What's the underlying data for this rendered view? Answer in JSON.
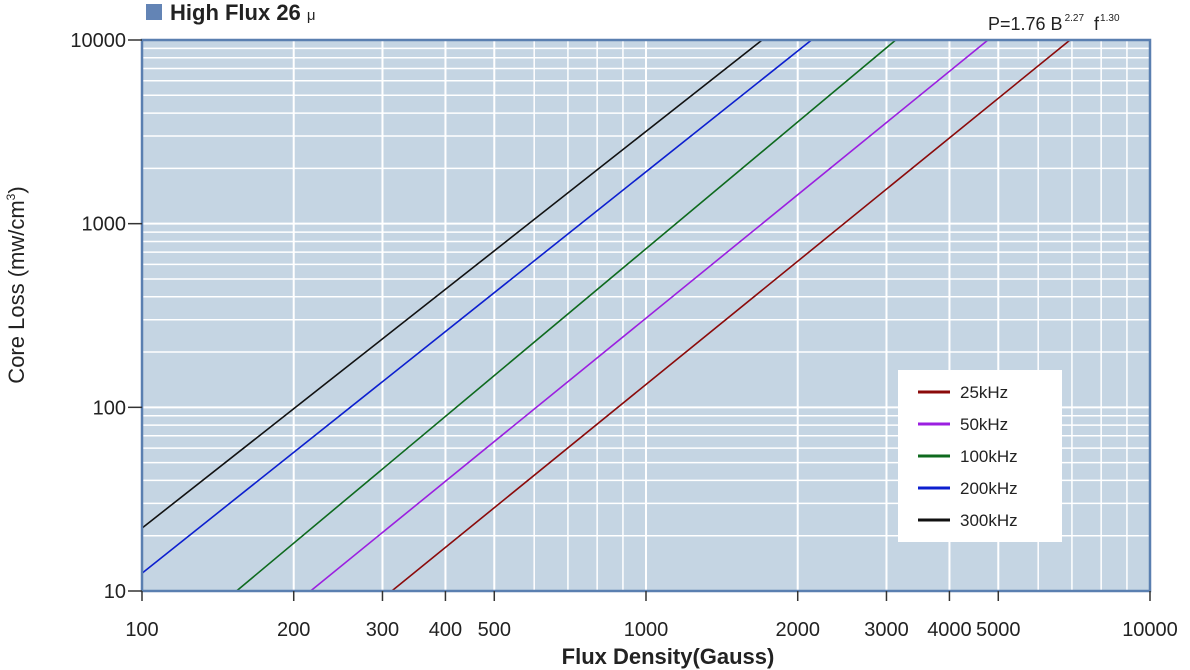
{
  "chart_data": {
    "type": "line",
    "title": "High Flux 26",
    "title_unit": "μ",
    "annotation": {
      "base": "P=1.76  B",
      "b_exp": "2.27",
      "f": "f",
      "f_exp": "1.30"
    },
    "x_label": "Flux Density(Gauss)",
    "y_label": {
      "text": "Core Loss (mw/cm",
      "sup": "3",
      "end": ")"
    },
    "xscale": "log",
    "yscale": "log",
    "xlim": [
      100,
      10000
    ],
    "ylim": [
      10,
      10000
    ],
    "xticks": [
      100,
      200,
      300,
      400,
      500,
      1000,
      2000,
      3000,
      4000,
      5000,
      10000
    ],
    "yticks": [
      10,
      100,
      1000,
      10000
    ],
    "grid": true,
    "minor_grid": true,
    "legend": "lower right",
    "series": [
      {
        "name": "25kHz",
        "color": "#8b0a0a",
        "x": [
          313,
          6940
        ],
        "values": [
          10,
          10000
        ]
      },
      {
        "name": "50kHz",
        "color": "#9b1fe0",
        "x": [
          216,
          4770
        ],
        "values": [
          10,
          10000
        ]
      },
      {
        "name": "100kHz",
        "color": "#0e6a1e",
        "x": [
          154,
          3130
        ],
        "values": [
          10,
          10000
        ]
      },
      {
        "name": "200kHz",
        "color": "#0c1fcf",
        "x": [
          100,
          2130
        ],
        "values": [
          12.5,
          10000
        ]
      },
      {
        "name": "300kHz",
        "color": "#111111",
        "x": [
          100,
          1700
        ],
        "values": [
          22,
          10000
        ]
      }
    ]
  }
}
